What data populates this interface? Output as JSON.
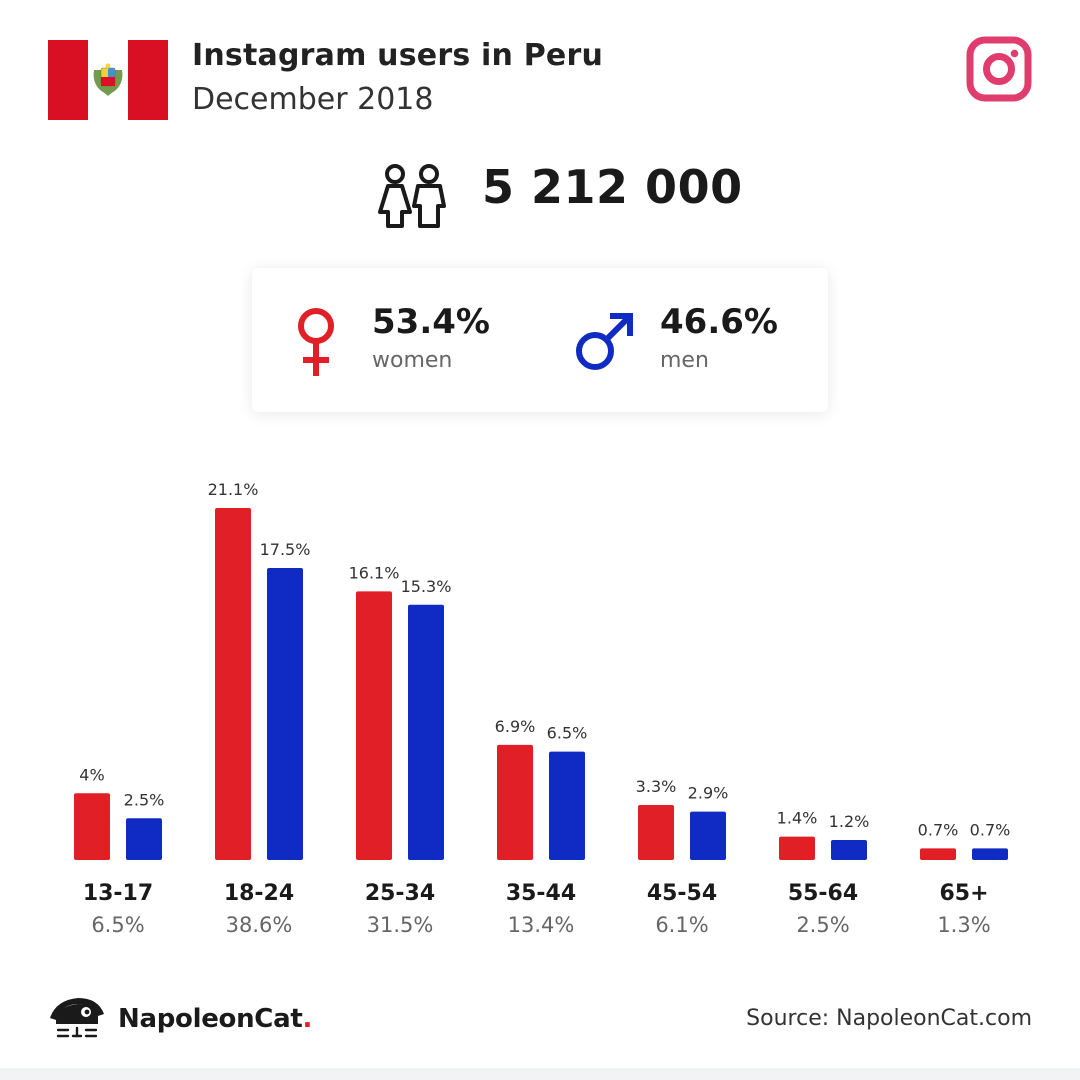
{
  "header": {
    "title": "Instagram users in Peru",
    "subtitle": "December 2018"
  },
  "summary": {
    "total_users": "5 212 000",
    "women": {
      "percent": "53.4%",
      "label": "women"
    },
    "men": {
      "percent": "46.6%",
      "label": "men"
    }
  },
  "colors": {
    "women": "#e01f26",
    "men": "#0f2bc4",
    "instagram": "#e03c6e",
    "flag_red": "#d91023"
  },
  "icons": {
    "flag": "peru-flag-icon",
    "instagram": "instagram-icon",
    "people": "people-icon",
    "female": "female-symbol-icon",
    "male": "male-symbol-icon",
    "brand": "napoleoncat-logo-icon"
  },
  "chart_data": {
    "type": "bar",
    "categories": [
      "13-17",
      "18-24",
      "25-34",
      "35-44",
      "45-54",
      "55-64",
      "65+"
    ],
    "group_totals": [
      "6.5%",
      "38.6%",
      "31.5%",
      "13.4%",
      "6.1%",
      "2.5%",
      "1.3%"
    ],
    "series": [
      {
        "color": "#e01f26",
        "values": [
          4,
          21.1,
          16.1,
          6.9,
          3.3,
          1.4,
          0.7
        ],
        "labels": [
          "4%",
          "21.1%",
          "16.1%",
          "6.9%",
          "3.3%",
          "1.4%",
          "0.7%"
        ]
      },
      {
        "color": "#0f2bc4",
        "values": [
          2.5,
          17.5,
          15.3,
          6.5,
          2.9,
          1.2,
          0.7
        ],
        "labels": [
          "2.5%",
          "17.5%",
          "15.3%",
          "6.5%",
          "2.9%",
          "1.2%",
          "0.7%"
        ]
      }
    ],
    "ylim": [
      0,
      21.1
    ],
    "grid": false,
    "legend": "none"
  },
  "footer": {
    "brand_name": "NapoleonCat",
    "brand_dot": ".",
    "source": "Source: NapoleonCat.com"
  }
}
